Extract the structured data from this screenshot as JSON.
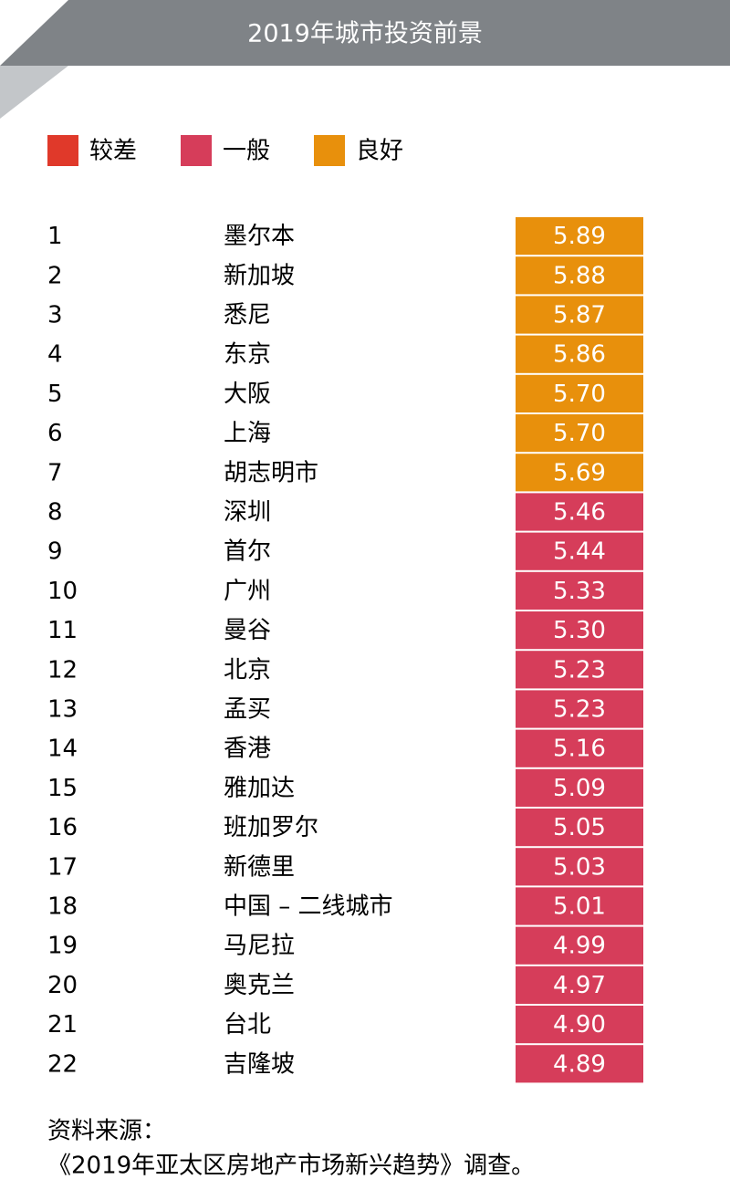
{
  "header": {
    "title": "2019年城市投资前景"
  },
  "legend": [
    {
      "label": "较差",
      "color": "#e0392a"
    },
    {
      "label": "一般",
      "color": "#d63d5a"
    },
    {
      "label": "良好",
      "color": "#e8900c"
    }
  ],
  "table": {
    "rows": [
      {
        "rank": 1,
        "city": "墨尔本",
        "score": "5.89",
        "color": "#e8900c"
      },
      {
        "rank": 2,
        "city": "新加坡",
        "score": "5.88",
        "color": "#e8900c"
      },
      {
        "rank": 3,
        "city": "悉尼",
        "score": "5.87",
        "color": "#e8900c"
      },
      {
        "rank": 4,
        "city": "东京",
        "score": "5.86",
        "color": "#e8900c"
      },
      {
        "rank": 5,
        "city": "大阪",
        "score": "5.70",
        "color": "#e8900c"
      },
      {
        "rank": 6,
        "city": "上海",
        "score": "5.70",
        "color": "#e8900c"
      },
      {
        "rank": 7,
        "city": "胡志明市",
        "score": "5.69",
        "color": "#e8900c"
      },
      {
        "rank": 8,
        "city": "深圳",
        "score": "5.46",
        "color": "#d63d5a"
      },
      {
        "rank": 9,
        "city": "首尔",
        "score": "5.44",
        "color": "#d63d5a"
      },
      {
        "rank": 10,
        "city": "广州",
        "score": "5.33",
        "color": "#d63d5a"
      },
      {
        "rank": 11,
        "city": "曼谷",
        "score": "5.30",
        "color": "#d63d5a"
      },
      {
        "rank": 12,
        "city": "北京",
        "score": "5.23",
        "color": "#d63d5a"
      },
      {
        "rank": 13,
        "city": "孟买",
        "score": "5.23",
        "color": "#d63d5a"
      },
      {
        "rank": 14,
        "city": "香港",
        "score": "5.16",
        "color": "#d63d5a"
      },
      {
        "rank": 15,
        "city": "雅加达",
        "score": "5.09",
        "color": "#d63d5a"
      },
      {
        "rank": 16,
        "city": "班加罗尔",
        "score": "5.05",
        "color": "#d63d5a"
      },
      {
        "rank": 17,
        "city": "新德里",
        "score": "5.03",
        "color": "#d63d5a"
      },
      {
        "rank": 18,
        "city": "中国 – 二线城市",
        "score": "5.01",
        "color": "#d63d5a"
      },
      {
        "rank": 19,
        "city": "马尼拉",
        "score": "4.99",
        "color": "#d63d5a"
      },
      {
        "rank": 20,
        "city": "奥克兰",
        "score": "4.97",
        "color": "#d63d5a"
      },
      {
        "rank": 21,
        "city": "台北",
        "score": "4.90",
        "color": "#d63d5a"
      },
      {
        "rank": 22,
        "city": "吉隆坡",
        "score": "4.89",
        "color": "#d63d5a"
      }
    ]
  },
  "footer": {
    "source_label": "资料来源：",
    "source": "《2019年亚太区房地产市场新兴趋势》调查。"
  }
}
